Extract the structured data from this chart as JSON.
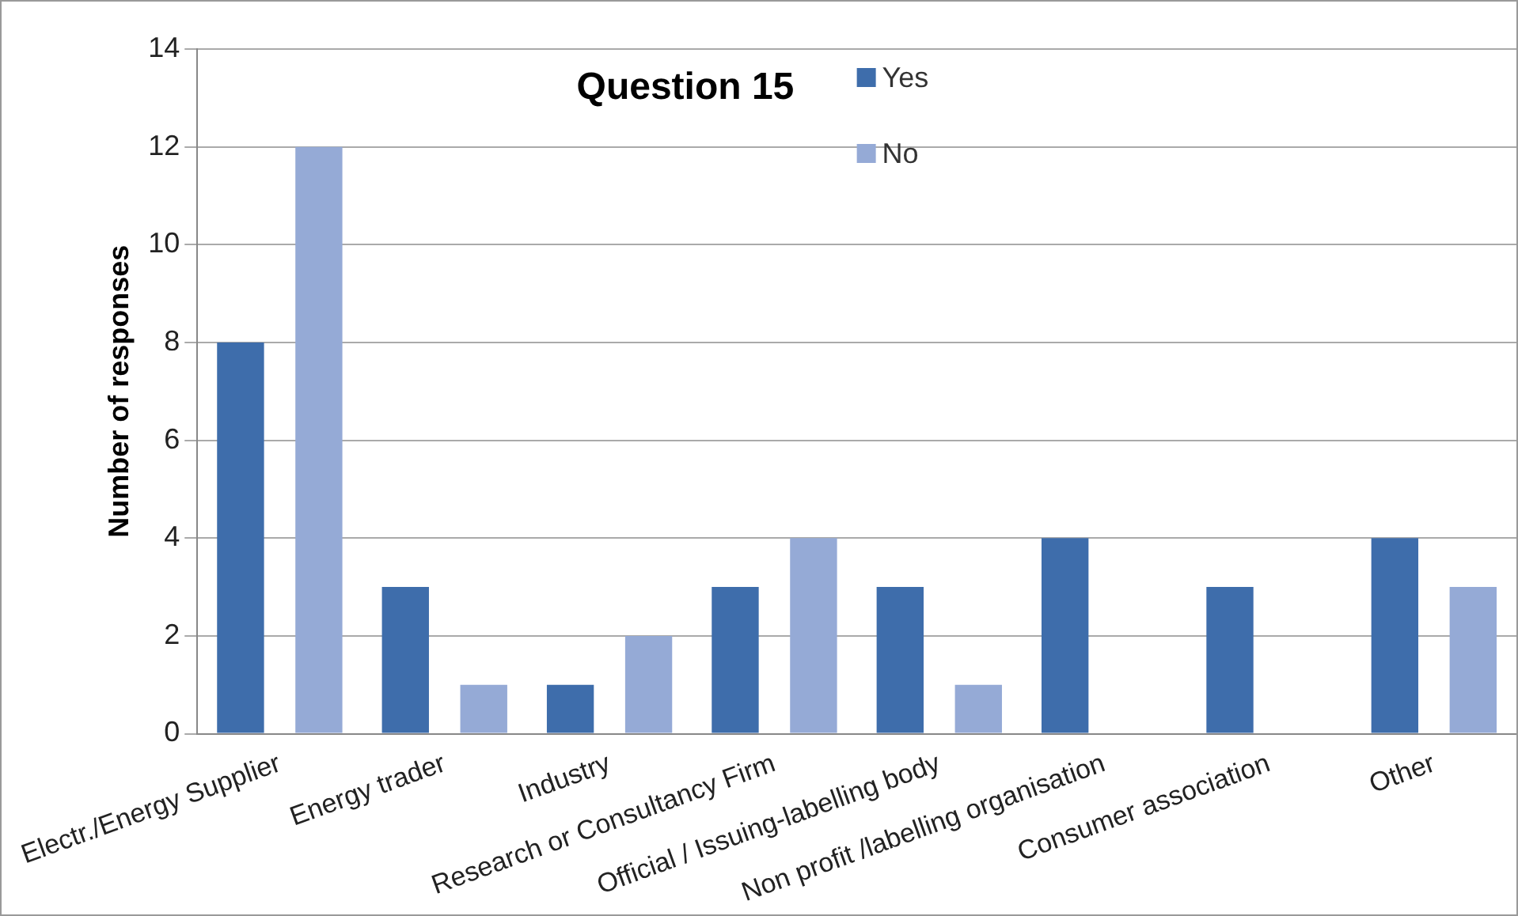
{
  "chart_data": {
    "type": "bar",
    "title": "Question 15",
    "ylabel": "Number of responses",
    "categories": [
      "Electr./Energy Supplier",
      "Energy trader",
      "Industry",
      "Research or Consultancy Firm",
      "Official / Issuing-labelling body",
      "Non profit /labelling organisation",
      "Consumer association",
      "Other"
    ],
    "series": [
      {
        "name": "Yes",
        "color": "#3e6dab",
        "values": [
          8,
          3,
          1,
          3,
          3,
          4,
          3,
          4
        ]
      },
      {
        "name": "No",
        "color": "#95aad6",
        "values": [
          12,
          1,
          2,
          4,
          1,
          0,
          0,
          3
        ]
      }
    ],
    "ylim": [
      0,
      14
    ],
    "yticks": [
      0,
      2,
      4,
      6,
      8,
      10,
      12,
      14
    ],
    "grid": "y",
    "legend": "top"
  }
}
